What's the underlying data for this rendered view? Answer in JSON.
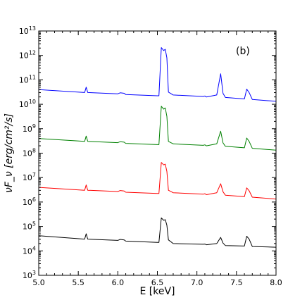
{
  "chart_data": {
    "type": "line",
    "panel_label": "(b)",
    "xlabel": "E [keV]",
    "ylabel": "νF_ν [erg/cm²/s]",
    "xlim": [
      5.0,
      8.0
    ],
    "ylim_log10": [
      3,
      13
    ],
    "yscale": "log",
    "x_ticks": [
      "5.0",
      "5.5",
      "6.0",
      "6.5",
      "7.0",
      "7.5",
      "8.0"
    ],
    "y_tick_exponents": [
      3,
      4,
      5,
      6,
      7,
      8,
      9,
      10,
      11,
      12,
      13
    ],
    "y_tick_base": "10",
    "grid": false,
    "legend": "none",
    "series": [
      {
        "color": "#0000ff",
        "log10_values": [
          [
            5.0,
            10.6
          ],
          [
            5.58,
            10.48
          ],
          [
            5.6,
            10.7
          ],
          [
            5.62,
            10.48
          ],
          [
            6.0,
            10.43
          ],
          [
            6.03,
            10.47
          ],
          [
            6.08,
            10.45
          ],
          [
            6.1,
            10.4
          ],
          [
            6.5,
            10.35
          ],
          [
            6.52,
            10.35
          ],
          [
            6.55,
            12.32
          ],
          [
            6.58,
            12.2
          ],
          [
            6.6,
            12.25
          ],
          [
            6.62,
            11.9
          ],
          [
            6.64,
            10.5
          ],
          [
            6.7,
            10.38
          ],
          [
            7.08,
            10.32
          ],
          [
            7.1,
            10.34
          ],
          [
            7.12,
            10.3
          ],
          [
            7.25,
            10.38
          ],
          [
            7.3,
            11.25
          ],
          [
            7.33,
            10.45
          ],
          [
            7.36,
            10.28
          ],
          [
            7.6,
            10.22
          ],
          [
            7.63,
            10.62
          ],
          [
            7.66,
            10.48
          ],
          [
            7.7,
            10.2
          ],
          [
            8.0,
            10.12
          ]
        ]
      },
      {
        "color": "#008000",
        "log10_values": [
          [
            5.0,
            8.6
          ],
          [
            5.58,
            8.48
          ],
          [
            5.6,
            8.7
          ],
          [
            5.62,
            8.48
          ],
          [
            6.0,
            8.43
          ],
          [
            6.03,
            8.47
          ],
          [
            6.08,
            8.45
          ],
          [
            6.1,
            8.4
          ],
          [
            6.5,
            8.35
          ],
          [
            6.52,
            8.35
          ],
          [
            6.55,
            9.92
          ],
          [
            6.58,
            9.8
          ],
          [
            6.6,
            9.85
          ],
          [
            6.62,
            9.5
          ],
          [
            6.64,
            8.48
          ],
          [
            6.7,
            8.38
          ],
          [
            7.08,
            8.32
          ],
          [
            7.1,
            8.34
          ],
          [
            7.12,
            8.3
          ],
          [
            7.25,
            8.38
          ],
          [
            7.3,
            8.9
          ],
          [
            7.33,
            8.42
          ],
          [
            7.36,
            8.28
          ],
          [
            7.6,
            8.22
          ],
          [
            7.63,
            8.62
          ],
          [
            7.66,
            8.48
          ],
          [
            7.7,
            8.2
          ],
          [
            8.0,
            8.12
          ]
        ]
      },
      {
        "color": "#ff0000",
        "log10_values": [
          [
            5.0,
            6.6
          ],
          [
            5.58,
            6.48
          ],
          [
            5.6,
            6.7
          ],
          [
            5.62,
            6.48
          ],
          [
            6.0,
            6.43
          ],
          [
            6.03,
            6.47
          ],
          [
            6.08,
            6.45
          ],
          [
            6.1,
            6.4
          ],
          [
            6.5,
            6.35
          ],
          [
            6.52,
            6.35
          ],
          [
            6.55,
            7.62
          ],
          [
            6.58,
            7.52
          ],
          [
            6.6,
            7.55
          ],
          [
            6.62,
            7.25
          ],
          [
            6.64,
            6.48
          ],
          [
            6.7,
            6.38
          ],
          [
            7.08,
            6.32
          ],
          [
            7.1,
            6.34
          ],
          [
            7.12,
            6.3
          ],
          [
            7.25,
            6.38
          ],
          [
            7.3,
            6.75
          ],
          [
            7.33,
            6.42
          ],
          [
            7.36,
            6.28
          ],
          [
            7.6,
            6.22
          ],
          [
            7.63,
            6.58
          ],
          [
            7.66,
            6.46
          ],
          [
            7.7,
            6.2
          ],
          [
            8.0,
            6.12
          ]
        ]
      },
      {
        "color": "#000000",
        "log10_values": [
          [
            5.0,
            4.62
          ],
          [
            5.58,
            4.48
          ],
          [
            5.6,
            4.7
          ],
          [
            5.62,
            4.48
          ],
          [
            6.0,
            4.43
          ],
          [
            6.03,
            4.47
          ],
          [
            6.08,
            4.45
          ],
          [
            6.1,
            4.4
          ],
          [
            6.5,
            4.35
          ],
          [
            6.52,
            4.35
          ],
          [
            6.55,
            5.35
          ],
          [
            6.58,
            5.25
          ],
          [
            6.6,
            5.28
          ],
          [
            6.62,
            5.05
          ],
          [
            6.64,
            4.45
          ],
          [
            6.7,
            4.3
          ],
          [
            7.08,
            4.27
          ],
          [
            7.1,
            4.28
          ],
          [
            7.12,
            4.25
          ],
          [
            7.25,
            4.3
          ],
          [
            7.3,
            4.55
          ],
          [
            7.33,
            4.32
          ],
          [
            7.36,
            4.22
          ],
          [
            7.6,
            4.2
          ],
          [
            7.63,
            4.6
          ],
          [
            7.66,
            4.48
          ],
          [
            7.7,
            4.18
          ],
          [
            8.0,
            4.15
          ]
        ]
      }
    ]
  }
}
